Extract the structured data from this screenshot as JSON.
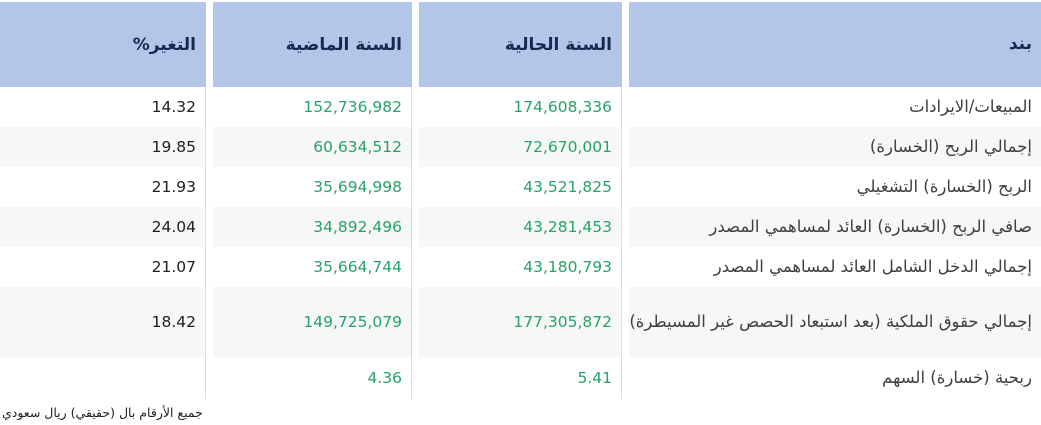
{
  "table": {
    "columns": {
      "item": "بند",
      "current_year": "السنة الحالية",
      "previous_year": "السنة الماضية",
      "change_pct": "التغير%"
    },
    "rows": [
      {
        "item": "المبيعات/الايرادات",
        "current_year": "174,608,336",
        "previous_year": "152,736,982",
        "change_pct": "14.32"
      },
      {
        "item": "إجمالي الربح (الخسارة)",
        "current_year": "72,670,001",
        "previous_year": "60,634,512",
        "change_pct": "19.85"
      },
      {
        "item": "الربح (الخسارة) التشغيلي",
        "current_year": "43,521,825",
        "previous_year": "35,694,998",
        "change_pct": "21.93"
      },
      {
        "item": "صافي الربح (الخسارة) العائد لمساهمي المصدر",
        "current_year": "43,281,453",
        "previous_year": "34,892,496",
        "change_pct": "24.04"
      },
      {
        "item": "إجمالي الدخل الشامل العائد لمساهمي المصدر",
        "current_year": "43,180,793",
        "previous_year": "35,664,744",
        "change_pct": "21.07"
      },
      {
        "item": "إجمالي حقوق الملكية (بعد استبعاد الحصص غير المسيطرة)",
        "current_year": "177,305,872",
        "previous_year": "149,725,079",
        "change_pct": "18.42"
      },
      {
        "item": "ربحية (خسارة) السهم",
        "current_year": "5.41",
        "previous_year": "4.36",
        "change_pct": ""
      }
    ],
    "footnote": "جميع الأرقام بال (حقيقي) ريال سعودي"
  },
  "colors": {
    "header_bg": "#b3c5e9",
    "header_text": "#16294e",
    "value_green": "#27a268",
    "alt_row_bg": "#f6f7f7",
    "label_text": "#3f3f3f",
    "separator": "#dcdcdc"
  }
}
